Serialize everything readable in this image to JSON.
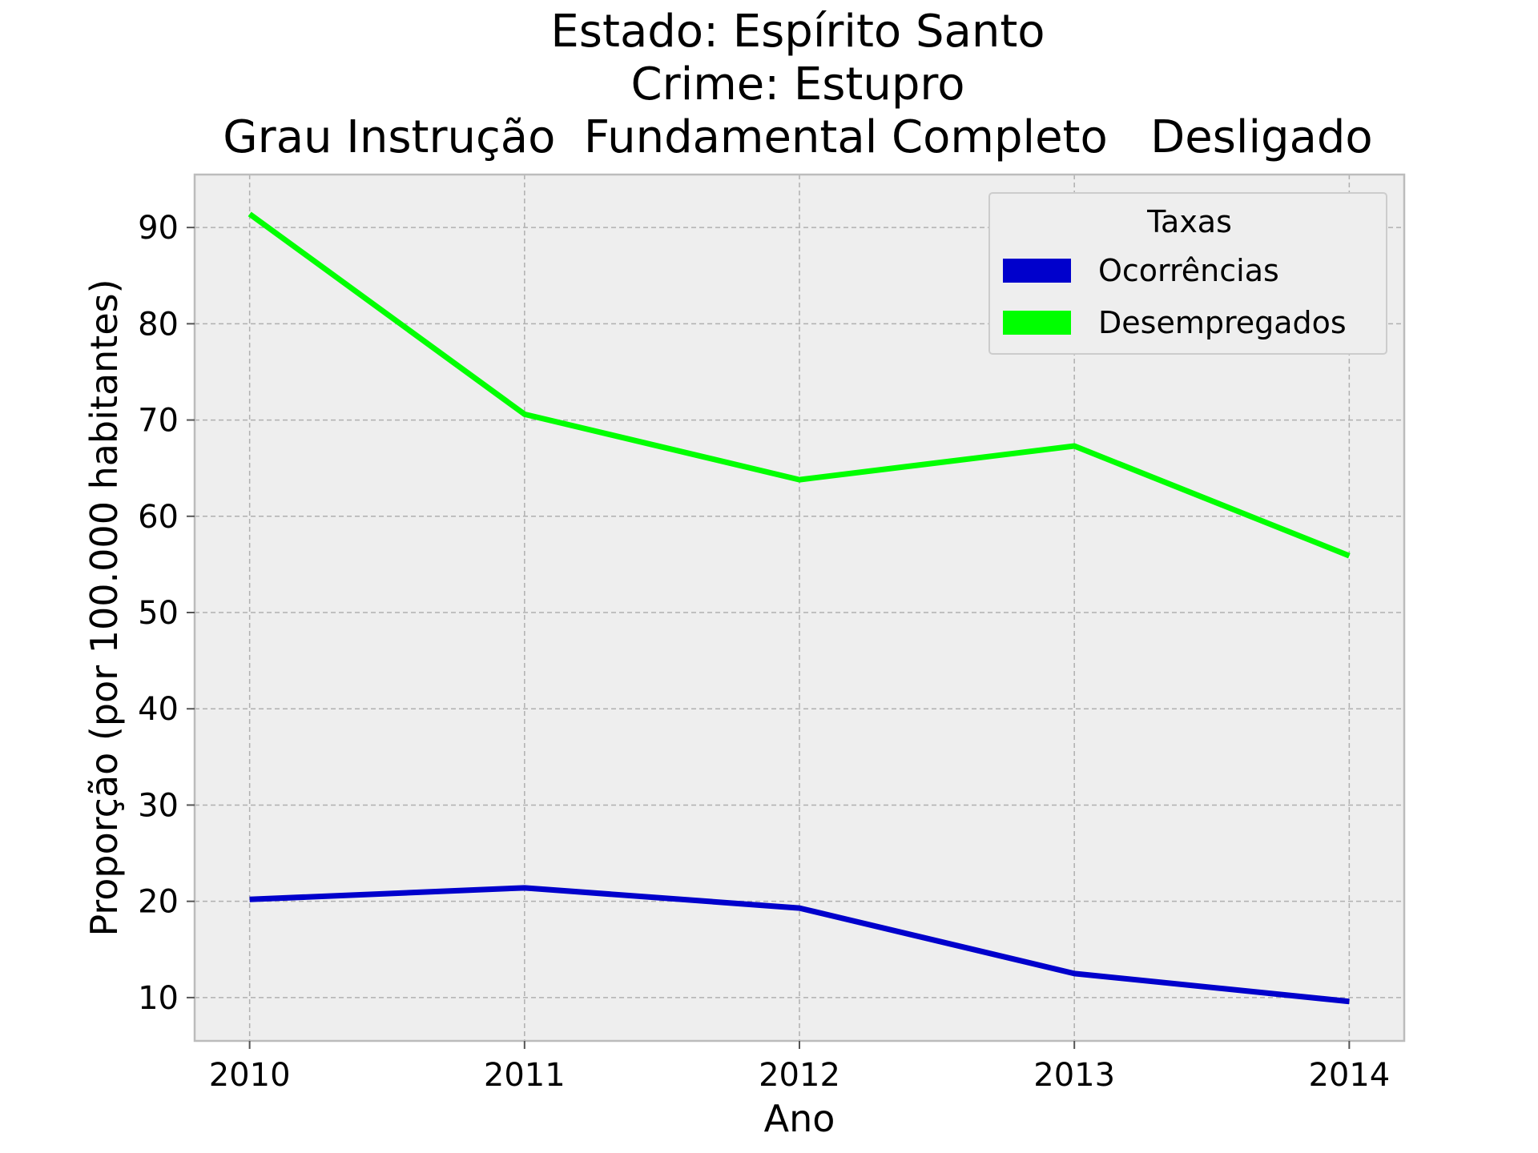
{
  "chart_data": {
    "type": "line",
    "title_lines": [
      "Estado: Espírito Santo",
      "Crime: Estupro",
      "Grau Instrução  Fundamental Completo   Desligado"
    ],
    "xlabel": "Ano",
    "ylabel": "Proporção (por 100.000 habitantes)",
    "x": [
      2010,
      2011,
      2012,
      2013,
      2014
    ],
    "x_tick_labels": [
      "2010",
      "2011",
      "2012",
      "2013",
      "2014"
    ],
    "y_ticks": [
      10,
      20,
      30,
      40,
      50,
      60,
      70,
      80,
      90
    ],
    "y_tick_labels": [
      "10",
      "20",
      "30",
      "40",
      "50",
      "60",
      "70",
      "80",
      "90"
    ],
    "xlim": [
      2009.8,
      2014.2
    ],
    "ylim": [
      5.5,
      95.5
    ],
    "grid": true,
    "legend": {
      "title": "Taxas",
      "position": "top-right"
    },
    "series": [
      {
        "name": "Ocorrências",
        "color": "#0000cc",
        "values": [
          20.2,
          21.4,
          19.3,
          12.5,
          9.6
        ]
      },
      {
        "name": "Desempregados",
        "color": "#00ff00",
        "values": [
          91.4,
          70.6,
          63.8,
          67.3,
          55.9
        ]
      }
    ],
    "colors": {
      "plot_bg": "#eeeeee",
      "frame": "#bcbcbc"
    }
  }
}
